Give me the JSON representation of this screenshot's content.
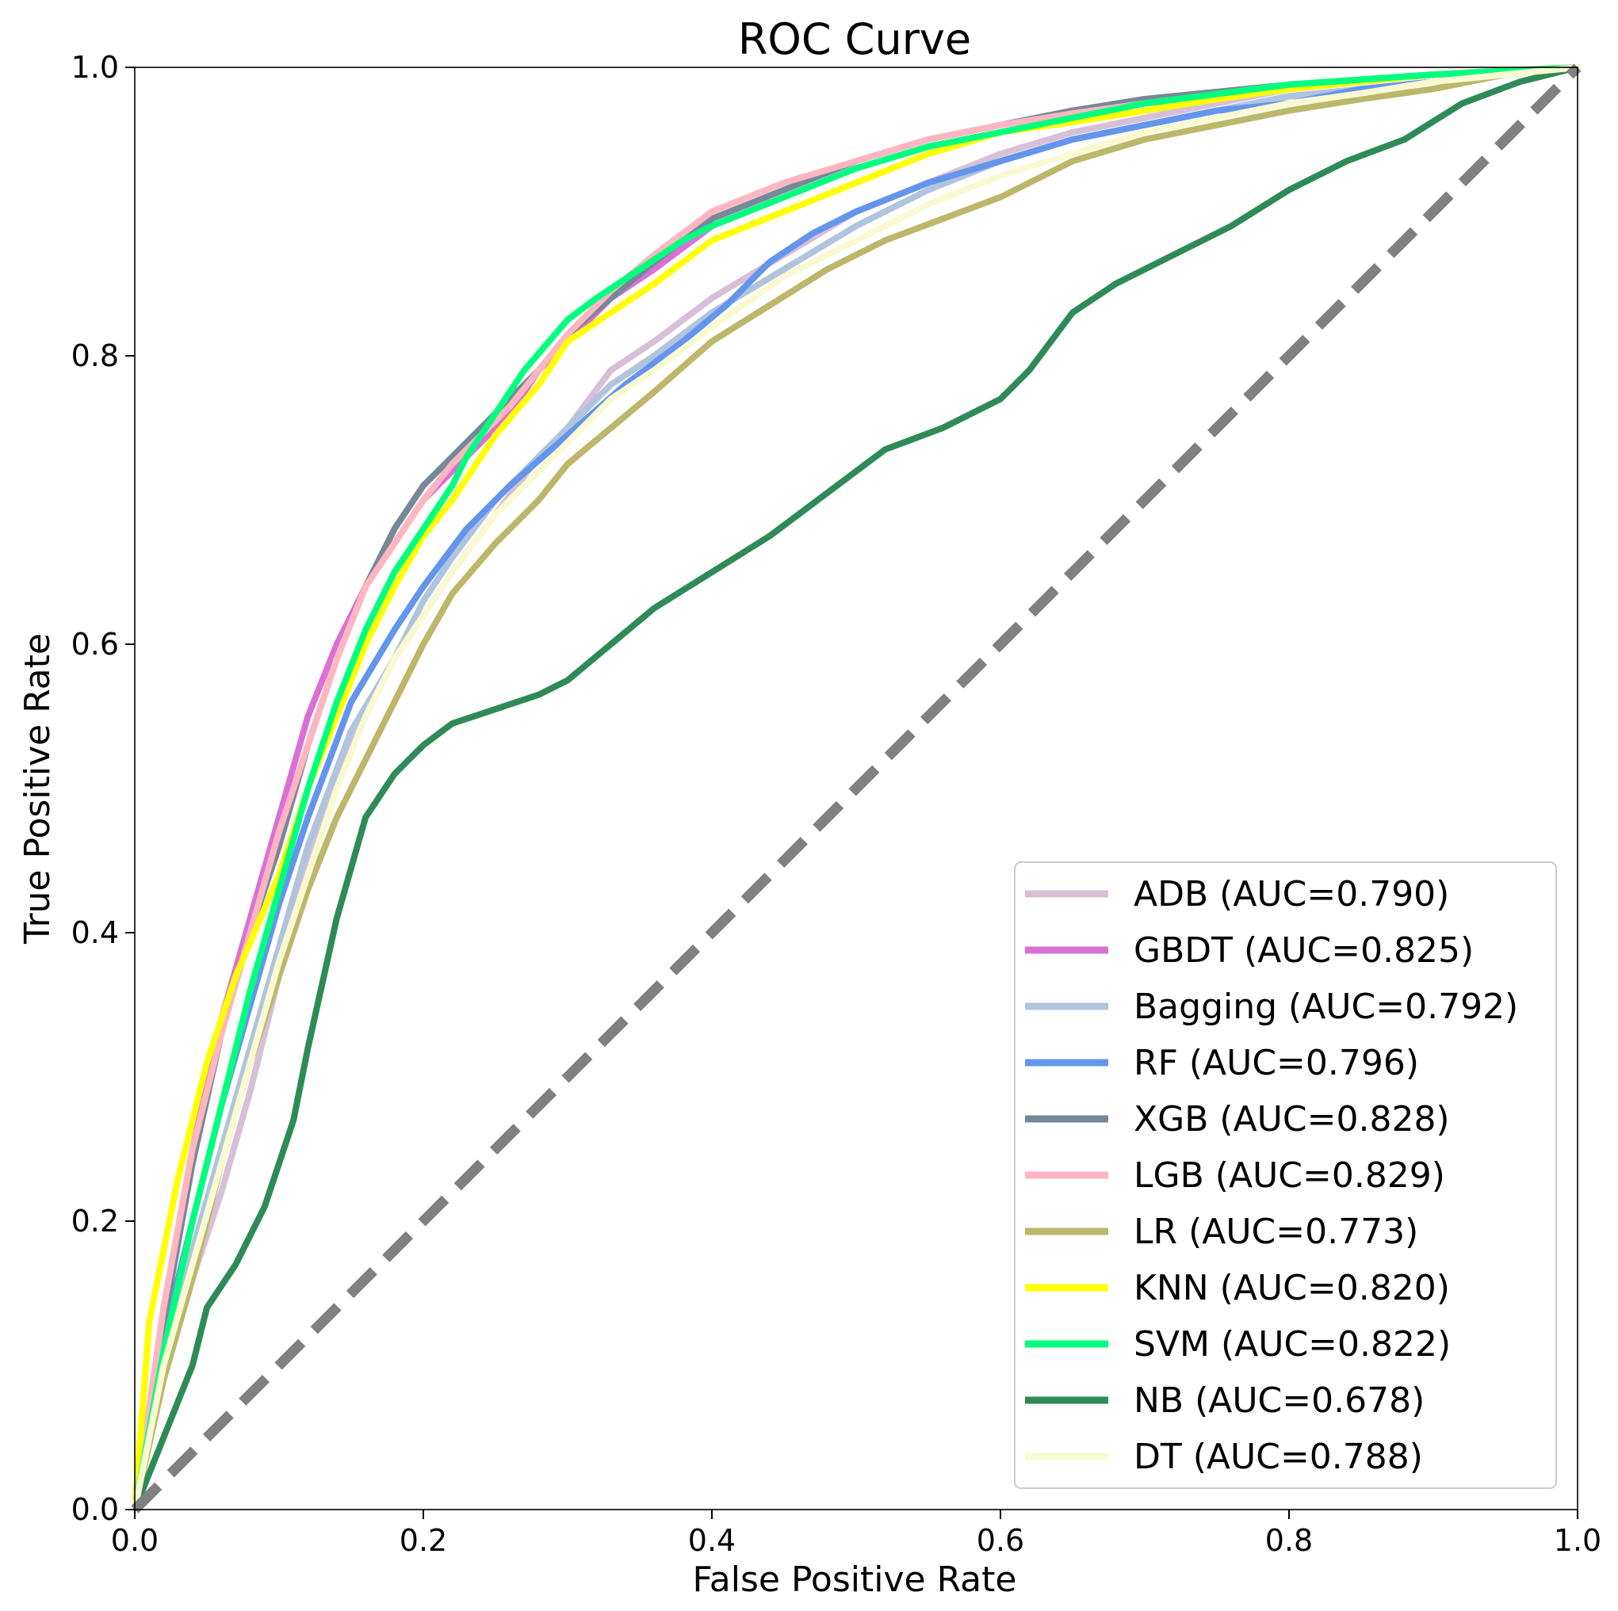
{
  "chart_data": {
    "type": "line",
    "title": "ROC Curve",
    "xlabel": "False Positive Rate",
    "ylabel": "True Positive Rate",
    "xlim": [
      0.0,
      1.0
    ],
    "ylim": [
      0.0,
      1.0
    ],
    "xticks": [
      "0.0",
      "0.2",
      "0.4",
      "0.6",
      "0.8",
      "1.0"
    ],
    "yticks": [
      "0.0",
      "0.2",
      "0.4",
      "0.6",
      "0.8",
      "1.0"
    ],
    "grid": false,
    "legend_position": "lower-right",
    "reference_line": {
      "style": "dashed",
      "color": "#808080",
      "x": [
        0,
        1
      ],
      "y": [
        0,
        1
      ]
    },
    "series": [
      {
        "name": "ADB (AUC=0.790)",
        "color": "#D8BFD8",
        "x": [
          0,
          0.02,
          0.04,
          0.06,
          0.08,
          0.1,
          0.12,
          0.15,
          0.18,
          0.2,
          0.22,
          0.25,
          0.28,
          0.3,
          0.33,
          0.36,
          0.4,
          0.45,
          0.5,
          0.55,
          0.6,
          0.65,
          0.7,
          0.75,
          0.8,
          0.85,
          0.9,
          0.95,
          1.0
        ],
        "y": [
          0,
          0.1,
          0.16,
          0.22,
          0.29,
          0.37,
          0.45,
          0.53,
          0.59,
          0.62,
          0.65,
          0.69,
          0.73,
          0.75,
          0.79,
          0.81,
          0.84,
          0.87,
          0.9,
          0.92,
          0.94,
          0.955,
          0.965,
          0.975,
          0.985,
          0.99,
          0.995,
          0.998,
          1.0
        ]
      },
      {
        "name": "GBDT (AUC=0.825)",
        "color": "#DA70D6",
        "x": [
          0,
          0.02,
          0.04,
          0.06,
          0.08,
          0.1,
          0.12,
          0.14,
          0.16,
          0.18,
          0.2,
          0.22,
          0.24,
          0.26,
          0.28,
          0.3,
          0.33,
          0.36,
          0.4,
          0.45,
          0.5,
          0.55,
          0.6,
          0.65,
          0.7,
          0.8,
          0.9,
          1.0
        ],
        "y": [
          0,
          0.14,
          0.25,
          0.34,
          0.41,
          0.48,
          0.55,
          0.6,
          0.64,
          0.67,
          0.7,
          0.72,
          0.74,
          0.76,
          0.79,
          0.81,
          0.84,
          0.86,
          0.89,
          0.91,
          0.93,
          0.945,
          0.955,
          0.965,
          0.975,
          0.985,
          0.995,
          1.0
        ]
      },
      {
        "name": "Bagging (AUC=0.792)",
        "color": "#B0C4DE",
        "x": [
          0,
          0.02,
          0.04,
          0.06,
          0.08,
          0.1,
          0.12,
          0.15,
          0.18,
          0.2,
          0.22,
          0.25,
          0.28,
          0.3,
          0.33,
          0.36,
          0.4,
          0.45,
          0.5,
          0.55,
          0.6,
          0.65,
          0.7,
          0.75,
          0.8,
          0.85,
          0.9,
          0.95,
          1.0
        ],
        "y": [
          0,
          0.11,
          0.18,
          0.25,
          0.32,
          0.39,
          0.46,
          0.54,
          0.59,
          0.63,
          0.66,
          0.7,
          0.73,
          0.75,
          0.78,
          0.8,
          0.83,
          0.86,
          0.89,
          0.915,
          0.935,
          0.95,
          0.96,
          0.97,
          0.98,
          0.985,
          0.99,
          0.995,
          1.0
        ]
      },
      {
        "name": "RF (AUC=0.796)",
        "color": "#6495ED",
        "x": [
          0,
          0.02,
          0.04,
          0.06,
          0.08,
          0.1,
          0.12,
          0.15,
          0.18,
          0.2,
          0.23,
          0.26,
          0.3,
          0.34,
          0.38,
          0.41,
          0.44,
          0.47,
          0.5,
          0.55,
          0.6,
          0.65,
          0.7,
          0.75,
          0.8,
          0.85,
          0.9,
          0.95,
          1.0
        ],
        "y": [
          0,
          0.12,
          0.2,
          0.28,
          0.35,
          0.42,
          0.48,
          0.56,
          0.61,
          0.64,
          0.68,
          0.71,
          0.745,
          0.78,
          0.81,
          0.835,
          0.865,
          0.885,
          0.9,
          0.92,
          0.935,
          0.95,
          0.96,
          0.97,
          0.975,
          0.985,
          0.99,
          0.995,
          1.0
        ]
      },
      {
        "name": "XGB (AUC=0.828)",
        "color": "#778899",
        "x": [
          0,
          0.02,
          0.04,
          0.06,
          0.08,
          0.1,
          0.12,
          0.14,
          0.16,
          0.18,
          0.2,
          0.22,
          0.24,
          0.26,
          0.28,
          0.3,
          0.33,
          0.36,
          0.4,
          0.45,
          0.5,
          0.55,
          0.6,
          0.65,
          0.7,
          0.8,
          0.9,
          1.0
        ],
        "y": [
          0,
          0.13,
          0.24,
          0.33,
          0.4,
          0.46,
          0.53,
          0.59,
          0.64,
          0.68,
          0.71,
          0.73,
          0.75,
          0.77,
          0.79,
          0.815,
          0.84,
          0.865,
          0.895,
          0.915,
          0.935,
          0.95,
          0.96,
          0.97,
          0.978,
          0.988,
          0.995,
          1.0
        ]
      },
      {
        "name": "LGB (AUC=0.829)",
        "color": "#FFB6C1",
        "x": [
          0,
          0.02,
          0.04,
          0.06,
          0.08,
          0.1,
          0.12,
          0.14,
          0.16,
          0.18,
          0.2,
          0.22,
          0.24,
          0.26,
          0.28,
          0.3,
          0.33,
          0.36,
          0.4,
          0.45,
          0.5,
          0.55,
          0.6,
          0.65,
          0.7,
          0.8,
          0.9,
          1.0
        ],
        "y": [
          0,
          0.14,
          0.25,
          0.33,
          0.4,
          0.47,
          0.53,
          0.59,
          0.64,
          0.67,
          0.7,
          0.725,
          0.745,
          0.765,
          0.79,
          0.815,
          0.845,
          0.87,
          0.9,
          0.92,
          0.935,
          0.95,
          0.96,
          0.968,
          0.975,
          0.988,
          0.995,
          1.0
        ]
      },
      {
        "name": "LR (AUC=0.773)",
        "color": "#BDB76B",
        "x": [
          0,
          0.02,
          0.04,
          0.06,
          0.08,
          0.1,
          0.12,
          0.14,
          0.16,
          0.18,
          0.2,
          0.22,
          0.25,
          0.28,
          0.3,
          0.33,
          0.36,
          0.4,
          0.44,
          0.48,
          0.52,
          0.56,
          0.6,
          0.65,
          0.7,
          0.75,
          0.8,
          0.85,
          0.9,
          0.95,
          1.0
        ],
        "y": [
          0,
          0.09,
          0.16,
          0.24,
          0.31,
          0.37,
          0.43,
          0.48,
          0.52,
          0.56,
          0.6,
          0.635,
          0.67,
          0.7,
          0.725,
          0.75,
          0.775,
          0.81,
          0.835,
          0.86,
          0.88,
          0.895,
          0.91,
          0.935,
          0.95,
          0.96,
          0.97,
          0.978,
          0.985,
          0.995,
          1.0
        ]
      },
      {
        "name": "KNN (AUC=0.820)",
        "color": "#FFFF00",
        "x": [
          0,
          0.01,
          0.03,
          0.05,
          0.07,
          0.1,
          0.12,
          0.14,
          0.16,
          0.18,
          0.2,
          0.22,
          0.25,
          0.28,
          0.3,
          0.33,
          0.36,
          0.4,
          0.45,
          0.5,
          0.55,
          0.6,
          0.65,
          0.7,
          0.75,
          0.8,
          0.9,
          1.0
        ],
        "y": [
          0,
          0.13,
          0.23,
          0.31,
          0.37,
          0.44,
          0.5,
          0.55,
          0.6,
          0.64,
          0.675,
          0.7,
          0.745,
          0.78,
          0.81,
          0.83,
          0.85,
          0.88,
          0.9,
          0.92,
          0.94,
          0.955,
          0.962,
          0.97,
          0.978,
          0.985,
          0.995,
          1.0
        ]
      },
      {
        "name": "SVM (AUC=0.822)",
        "color": "#00FF7F",
        "x": [
          0,
          0.02,
          0.04,
          0.06,
          0.08,
          0.1,
          0.12,
          0.14,
          0.16,
          0.18,
          0.2,
          0.22,
          0.23,
          0.25,
          0.27,
          0.3,
          0.32,
          0.35,
          0.38,
          0.4,
          0.45,
          0.5,
          0.55,
          0.6,
          0.65,
          0.7,
          0.8,
          0.9,
          1.0
        ],
        "y": [
          0,
          0.11,
          0.2,
          0.28,
          0.36,
          0.43,
          0.5,
          0.56,
          0.61,
          0.65,
          0.68,
          0.71,
          0.73,
          0.76,
          0.79,
          0.825,
          0.84,
          0.86,
          0.88,
          0.89,
          0.91,
          0.93,
          0.945,
          0.955,
          0.965,
          0.975,
          0.988,
          0.995,
          1.0
        ]
      },
      {
        "name": "NB (AUC=0.678)",
        "color": "#2E8B57",
        "x": [
          0,
          0.02,
          0.04,
          0.05,
          0.07,
          0.09,
          0.11,
          0.12,
          0.14,
          0.16,
          0.18,
          0.2,
          0.22,
          0.25,
          0.28,
          0.3,
          0.33,
          0.36,
          0.4,
          0.44,
          0.48,
          0.52,
          0.56,
          0.6,
          0.62,
          0.65,
          0.68,
          0.72,
          0.76,
          0.8,
          0.84,
          0.88,
          0.92,
          0.96,
          1.0
        ],
        "y": [
          0,
          0.05,
          0.1,
          0.14,
          0.17,
          0.21,
          0.27,
          0.32,
          0.41,
          0.48,
          0.51,
          0.53,
          0.545,
          0.555,
          0.565,
          0.575,
          0.6,
          0.625,
          0.65,
          0.675,
          0.705,
          0.735,
          0.75,
          0.77,
          0.79,
          0.83,
          0.85,
          0.87,
          0.89,
          0.915,
          0.935,
          0.95,
          0.975,
          0.99,
          1.0
        ]
      },
      {
        "name": "DT (AUC=0.788)",
        "color": "#FAFAD2",
        "x": [
          0,
          0.02,
          0.04,
          0.06,
          0.08,
          0.1,
          0.12,
          0.14,
          0.16,
          0.18,
          0.2,
          0.22,
          0.25,
          0.28,
          0.3,
          0.33,
          0.36,
          0.4,
          0.45,
          0.5,
          0.55,
          0.6,
          0.65,
          0.7,
          0.75,
          0.8,
          0.85,
          0.9,
          0.95,
          1.0
        ],
        "y": [
          0,
          0.1,
          0.17,
          0.24,
          0.31,
          0.38,
          0.44,
          0.5,
          0.55,
          0.59,
          0.62,
          0.65,
          0.69,
          0.72,
          0.74,
          0.77,
          0.79,
          0.82,
          0.855,
          0.88,
          0.905,
          0.925,
          0.94,
          0.955,
          0.965,
          0.975,
          0.982,
          0.99,
          0.995,
          1.0
        ]
      }
    ]
  }
}
